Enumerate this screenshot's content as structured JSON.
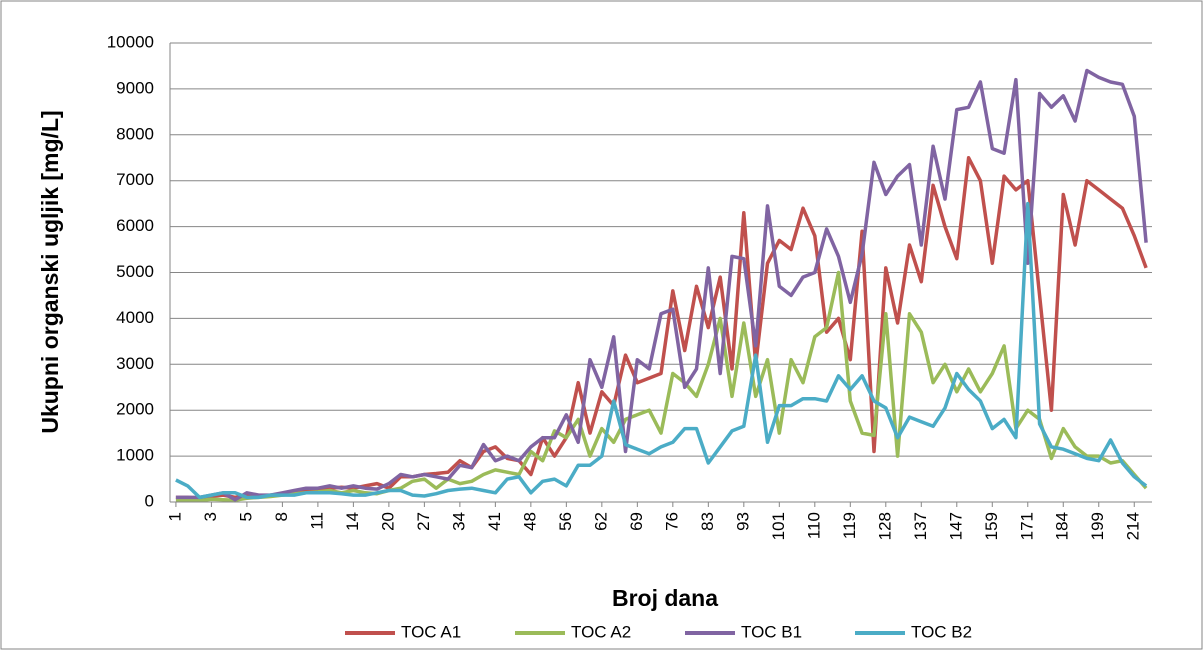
{
  "chart_data": {
    "type": "line",
    "y_label": "Ukupni organski ugljik [mg/L]",
    "x_label": "Broj dana",
    "categories": [
      "1",
      null,
      null,
      "3",
      null,
      null,
      "5",
      null,
      null,
      "8",
      null,
      null,
      "11",
      null,
      null,
      "14",
      null,
      null,
      "20",
      null,
      null,
      "27",
      null,
      null,
      "34",
      null,
      null,
      "41",
      null,
      null,
      "48",
      null,
      null,
      "56",
      null,
      null,
      "62",
      null,
      null,
      "69",
      null,
      null,
      "76",
      null,
      null,
      "83",
      null,
      null,
      "93",
      null,
      null,
      "101",
      null,
      null,
      "110",
      null,
      null,
      "119",
      null,
      null,
      "128",
      null,
      null,
      "137",
      null,
      null,
      "147",
      null,
      null,
      "159",
      null,
      null,
      "171",
      null,
      null,
      "184",
      null,
      null,
      "199",
      null,
      null,
      "214",
      null
    ],
    "series": [
      {
        "name": "TOC A1",
        "color": "#c0504d",
        "values": [
          100,
          100,
          80,
          120,
          150,
          100,
          150,
          120,
          150,
          180,
          200,
          250,
          280,
          300,
          320,
          300,
          350,
          400,
          300,
          550,
          550,
          600,
          620,
          650,
          900,
          750,
          1100,
          1200,
          950,
          900,
          600,
          1400,
          1000,
          1400,
          2600,
          1500,
          2400,
          2100,
          3200,
          2600,
          2700,
          2800,
          4600,
          3300,
          4700,
          3800,
          4900,
          2900,
          6300,
          3000,
          5200,
          5700,
          5500,
          6400,
          5800,
          3700,
          4000,
          3100,
          5900,
          1100,
          5100,
          3900,
          5600,
          4800,
          6900,
          6000,
          5300,
          7500,
          7000,
          5200,
          7100,
          6800,
          7000,
          4500,
          2000,
          6700,
          5600,
          7000,
          6800,
          6600,
          6400,
          5800,
          5100
        ]
      },
      {
        "name": "TOC A2",
        "color": "#9bbb59",
        "values": [
          50,
          50,
          30,
          60,
          50,
          40,
          80,
          100,
          120,
          150,
          180,
          200,
          220,
          250,
          200,
          250,
          200,
          180,
          250,
          300,
          450,
          500,
          300,
          500,
          400,
          450,
          600,
          700,
          650,
          600,
          1100,
          900,
          1550,
          1400,
          1800,
          1000,
          1600,
          1300,
          1800,
          1900,
          2000,
          1500,
          2800,
          2600,
          2300,
          3000,
          4000,
          2300,
          3900,
          2300,
          3100,
          1500,
          3100,
          2600,
          3600,
          3800,
          5000,
          2200,
          1500,
          1450,
          4100,
          1000,
          4100,
          3700,
          2600,
          3000,
          2400,
          2900,
          2400,
          2800,
          3400,
          1600,
          2000,
          1800,
          950,
          1600,
          1200,
          1000,
          1000,
          850,
          900,
          600,
          300
        ]
      },
      {
        "name": "TOC B1",
        "color": "#8064a2",
        "values": [
          100,
          100,
          100,
          150,
          200,
          50,
          200,
          150,
          150,
          200,
          250,
          300,
          300,
          350,
          300,
          350,
          300,
          280,
          400,
          600,
          550,
          600,
          550,
          500,
          800,
          750,
          1250,
          900,
          1000,
          900,
          1200,
          1400,
          1400,
          1900,
          1300,
          3100,
          2500,
          3600,
          1100,
          3100,
          2900,
          4100,
          4200,
          2500,
          2900,
          5100,
          2800,
          5350,
          5300,
          3400,
          6450,
          4700,
          4500,
          4900,
          5000,
          5950,
          5350,
          4350,
          5400,
          7400,
          6700,
          7100,
          7350,
          5600,
          7750,
          6600,
          8550,
          8600,
          9150,
          7700,
          7600,
          9200,
          5200,
          8900,
          8600,
          8850,
          8300,
          9400,
          9250,
          9150,
          9100,
          8400,
          5650
        ]
      },
      {
        "name": "TOC B2",
        "color": "#4bacc6",
        "values": [
          480,
          350,
          100,
          150,
          200,
          200,
          100,
          100,
          150,
          150,
          150,
          200,
          200,
          200,
          180,
          150,
          150,
          200,
          250,
          250,
          150,
          130,
          180,
          250,
          280,
          300,
          250,
          200,
          500,
          550,
          200,
          450,
          500,
          350,
          800,
          800,
          1000,
          2200,
          1250,
          1150,
          1050,
          1200,
          1300,
          1600,
          1600,
          850,
          1200,
          1550,
          1650,
          3200,
          1300,
          2100,
          2100,
          2250,
          2250,
          2200,
          2750,
          2450,
          2750,
          2200,
          2050,
          1400,
          1850,
          1750,
          1650,
          2050,
          2800,
          2450,
          2200,
          1600,
          1800,
          1400,
          6500,
          1700,
          1200,
          1150,
          1050,
          950,
          900,
          1350,
          850,
          550,
          350
        ]
      }
    ],
    "ylim": [
      0,
      10000
    ],
    "yticks": [
      0,
      1000,
      2000,
      3000,
      4000,
      5000,
      6000,
      7000,
      8000,
      9000,
      10000
    ],
    "grid": true,
    "legend": "bottom"
  }
}
